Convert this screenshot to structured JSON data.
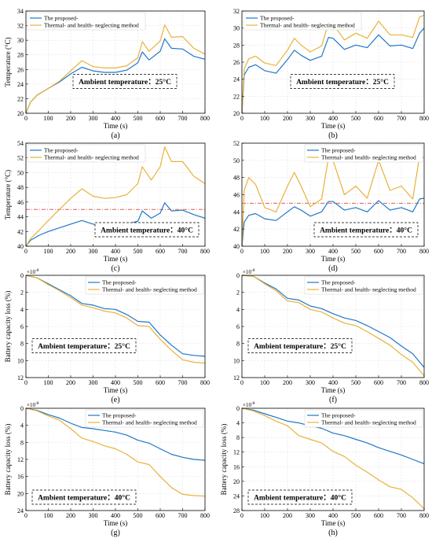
{
  "colors": {
    "proposed": "#1f77c8",
    "neglect": "#e8b23a",
    "limit": "#e05a5a"
  },
  "chart_data": [
    {
      "type": "line",
      "caption": "(a)",
      "xlabel": "Time (s)",
      "ylabel": "Temperature (°C)",
      "xlim": [
        0,
        800
      ],
      "ylim": [
        20,
        34
      ],
      "xticks": [
        "0",
        "100",
        "200",
        "300",
        "400",
        "500",
        "600",
        "700",
        "800"
      ],
      "yticks": [
        "20",
        "22",
        "24",
        "26",
        "28",
        "30",
        "32",
        "34"
      ],
      "ytick_values": [
        20,
        22,
        24,
        26,
        28,
        30,
        32,
        34
      ],
      "legend": "top-left",
      "grid": true,
      "annotation": "Ambient temperature：25°C",
      "annotation_pos": "center",
      "series": [
        {
          "name": "The proposed-",
          "x": [
            0,
            20,
            50,
            100,
            150,
            200,
            250,
            300,
            350,
            400,
            450,
            500,
            520,
            550,
            600,
            620,
            650,
            700,
            750,
            800
          ],
          "y": [
            20,
            21.5,
            22.5,
            23.4,
            24.3,
            25.4,
            26.3,
            25.8,
            25.6,
            25.6,
            25.9,
            26.9,
            28.4,
            27.3,
            28.5,
            30.2,
            28.9,
            28.8,
            27.8,
            27.4
          ]
        },
        {
          "name": "Thermal- and health- neglecting method",
          "x": [
            0,
            20,
            50,
            100,
            150,
            200,
            250,
            300,
            350,
            400,
            450,
            500,
            520,
            550,
            600,
            620,
            650,
            700,
            750,
            800
          ],
          "y": [
            20,
            21.5,
            22.5,
            23.4,
            24.4,
            25.8,
            27.2,
            26.4,
            26.2,
            26.2,
            26.5,
            27.6,
            29.8,
            28.5,
            29.9,
            32.1,
            30.4,
            30.5,
            28.9,
            28.1
          ]
        }
      ]
    },
    {
      "type": "line",
      "caption": "(b)",
      "xlabel": "Time (s)",
      "ylabel": "",
      "xlim": [
        0,
        800
      ],
      "ylim": [
        20,
        32
      ],
      "xticks": [
        "0",
        "100",
        "200",
        "300",
        "400",
        "500",
        "600",
        "700",
        "800"
      ],
      "yticks": [
        "20",
        "22",
        "24",
        "26",
        "28",
        "30",
        "32"
      ],
      "ytick_values": [
        20,
        22,
        24,
        26,
        28,
        30,
        32
      ],
      "legend": "top-left",
      "grid": true,
      "annotation": "Ambient temperature：25°C",
      "annotation_pos": "center",
      "series": [
        {
          "name": "The proposed-",
          "x": [
            0,
            10,
            30,
            60,
            100,
            150,
            200,
            230,
            260,
            300,
            350,
            380,
            400,
            450,
            500,
            550,
            600,
            650,
            700,
            750,
            780,
            800
          ],
          "y": [
            20,
            24.5,
            25.4,
            25.7,
            25.0,
            24.7,
            26.3,
            27.4,
            26.8,
            26.2,
            26.7,
            28.9,
            28.8,
            27.5,
            28.0,
            27.7,
            29.2,
            27.9,
            28.0,
            27.6,
            29.4,
            30.0
          ]
        },
        {
          "name": "Thermal- and health- neglecting method",
          "x": [
            0,
            10,
            30,
            60,
            100,
            150,
            200,
            230,
            260,
            300,
            350,
            380,
            400,
            450,
            500,
            550,
            600,
            650,
            700,
            750,
            780,
            800
          ],
          "y": [
            20,
            25.2,
            26.4,
            26.7,
            25.9,
            25.6,
            27.4,
            28.8,
            28.0,
            27.2,
            27.9,
            30.6,
            30.5,
            28.6,
            29.4,
            28.8,
            30.8,
            29.2,
            29.2,
            28.9,
            31.3,
            31.5
          ]
        }
      ]
    },
    {
      "type": "line",
      "caption": "(c)",
      "xlabel": "Time (s)",
      "ylabel": "Temperature (°C)",
      "xlim": [
        0,
        800
      ],
      "ylim": [
        40,
        54
      ],
      "xticks": [
        "0",
        "100",
        "200",
        "300",
        "400",
        "500",
        "600",
        "700",
        "800"
      ],
      "yticks": [
        "40",
        "42",
        "44",
        "46",
        "48",
        "50",
        "52",
        "54"
      ],
      "ytick_values": [
        40,
        42,
        44,
        46,
        48,
        50,
        52,
        54
      ],
      "legend": "top-left",
      "grid": true,
      "limit_line": 45,
      "annotation": "Ambient temperature：40°C",
      "annotation_pos": "bottom-right",
      "series": [
        {
          "name": "The proposed-",
          "x": [
            0,
            20,
            60,
            100,
            150,
            200,
            250,
            300,
            350,
            400,
            450,
            500,
            520,
            560,
            600,
            620,
            650,
            700,
            750,
            800
          ],
          "y": [
            40,
            40.8,
            41.5,
            42.0,
            42.5,
            43.0,
            43.5,
            43.0,
            42.8,
            42.8,
            43.0,
            43.4,
            44.8,
            43.8,
            44.5,
            45.9,
            44.8,
            44.9,
            44.3,
            43.8
          ]
        },
        {
          "name": "Thermal- and health- neglecting method",
          "x": [
            0,
            20,
            60,
            100,
            150,
            200,
            250,
            300,
            350,
            400,
            450,
            500,
            520,
            560,
            600,
            620,
            650,
            700,
            750,
            800
          ],
          "y": [
            40,
            41.0,
            42.2,
            43.5,
            45.0,
            46.5,
            47.8,
            46.8,
            46.5,
            46.6,
            47.0,
            48.5,
            50.8,
            49.0,
            50.8,
            53.5,
            51.5,
            51.5,
            49.5,
            48.5
          ]
        }
      ]
    },
    {
      "type": "line",
      "caption": "(d)",
      "xlabel": "Time (s)",
      "ylabel": "",
      "xlim": [
        0,
        800
      ],
      "ylim": [
        40,
        52
      ],
      "xticks": [
        "0",
        "100",
        "200",
        "300",
        "400",
        "500",
        "600",
        "700",
        "800"
      ],
      "yticks": [
        "40",
        "42",
        "44",
        "46",
        "48",
        "50",
        "52"
      ],
      "ytick_values": [
        40,
        42,
        44,
        46,
        48,
        50,
        52
      ],
      "legend": "top-right",
      "grid": true,
      "limit_line": 45,
      "annotation": "Ambient temperature：40°C",
      "annotation_pos": "bottom-right",
      "series": [
        {
          "name": "The proposed-",
          "x": [
            0,
            10,
            30,
            60,
            100,
            150,
            200,
            230,
            260,
            300,
            350,
            380,
            400,
            450,
            500,
            550,
            600,
            650,
            700,
            750,
            780,
            800
          ],
          "y": [
            40,
            42.8,
            43.6,
            43.8,
            43.2,
            43.0,
            44.0,
            44.6,
            44.2,
            43.5,
            44.0,
            45.2,
            45.2,
            44.2,
            44.5,
            44.0,
            45.3,
            44.2,
            44.5,
            44.0,
            45.5,
            45.6
          ]
        },
        {
          "name": "Thermal- and health- neglecting method",
          "x": [
            0,
            10,
            30,
            60,
            100,
            150,
            200,
            230,
            260,
            300,
            350,
            380,
            400,
            450,
            500,
            550,
            600,
            650,
            700,
            750,
            780,
            800
          ],
          "y": [
            40,
            46.5,
            48.0,
            47.2,
            44.5,
            44.0,
            47.0,
            48.6,
            47.0,
            44.6,
            45.5,
            50.3,
            50.0,
            46.0,
            47.0,
            45.6,
            50.0,
            46.5,
            47.0,
            45.5,
            50.5,
            50.3
          ]
        }
      ]
    },
    {
      "type": "line",
      "caption": "(e)",
      "xlabel": "Time (s)",
      "ylabel": "Battery capacity loss (%)",
      "xlim": [
        0,
        800
      ],
      "ylim": [
        0,
        12
      ],
      "y_inverted": true,
      "exponent": "×10",
      "exponent_power": "-8",
      "xticks": [
        "0",
        "100",
        "200",
        "300",
        "400",
        "500",
        "600",
        "700",
        "800"
      ],
      "yticks": [
        "0",
        "2",
        "4",
        "6",
        "8",
        "10",
        "12"
      ],
      "ytick_values": [
        0,
        2,
        4,
        6,
        8,
        10,
        12
      ],
      "legend": "top-right",
      "grid": true,
      "annotation": "Ambient temperature：25°C",
      "annotation_pos": "left",
      "series": [
        {
          "name": "The proposed-",
          "x": [
            0,
            50,
            100,
            150,
            200,
            250,
            300,
            350,
            400,
            450,
            500,
            550,
            600,
            650,
            700,
            750,
            800
          ],
          "y": [
            0,
            0.3,
            1.0,
            1.7,
            2.4,
            3.3,
            3.5,
            3.9,
            4.0,
            4.6,
            5.4,
            5.5,
            7.0,
            8.2,
            9.2,
            9.4,
            9.5
          ]
        },
        {
          "name": "Thermal- and health- neglecting method",
          "x": [
            0,
            50,
            100,
            150,
            200,
            250,
            300,
            350,
            400,
            450,
            500,
            550,
            600,
            650,
            700,
            750,
            800
          ],
          "y": [
            0,
            0.3,
            1.1,
            1.8,
            2.6,
            3.5,
            3.8,
            4.2,
            4.4,
            5.0,
            5.9,
            6.0,
            7.5,
            8.8,
            9.9,
            10.2,
            10.3
          ]
        }
      ]
    },
    {
      "type": "line",
      "caption": "(f)",
      "xlabel": "Time (s)",
      "ylabel": "",
      "xlim": [
        0,
        800
      ],
      "ylim": [
        0,
        12
      ],
      "y_inverted": true,
      "exponent": "×10",
      "exponent_power": "-8",
      "xticks": [
        "0",
        "100",
        "200",
        "300",
        "400",
        "500",
        "600",
        "700",
        "800"
      ],
      "yticks": [
        "0",
        "2",
        "4",
        "6",
        "8",
        "10",
        "12"
      ],
      "ytick_values": [
        0,
        2,
        4,
        6,
        8,
        10,
        12
      ],
      "legend": "top-right",
      "grid": true,
      "annotation": "Ambient temperature：25°C",
      "annotation_pos": "left",
      "series": [
        {
          "name": "The proposed-",
          "x": [
            0,
            50,
            100,
            150,
            200,
            250,
            300,
            350,
            400,
            450,
            500,
            550,
            600,
            650,
            700,
            750,
            800
          ],
          "y": [
            0,
            0.1,
            0.9,
            1.6,
            2.7,
            2.9,
            3.6,
            3.9,
            4.5,
            5.0,
            5.3,
            5.9,
            6.6,
            7.3,
            8.3,
            9.2,
            10.8
          ]
        },
        {
          "name": "Thermal- and health- neglecting method",
          "x": [
            0,
            50,
            100,
            150,
            200,
            250,
            300,
            350,
            400,
            450,
            500,
            550,
            600,
            650,
            700,
            750,
            800
          ],
          "y": [
            0,
            0.1,
            1.0,
            1.8,
            3.0,
            3.2,
            4.0,
            4.3,
            5.0,
            5.6,
            5.9,
            6.6,
            7.4,
            8.2,
            9.3,
            10.2,
            11.8
          ]
        }
      ]
    },
    {
      "type": "line",
      "caption": "(g)",
      "xlabel": "Time (s)",
      "ylabel": "Battery capacity loss (%)",
      "xlim": [
        0,
        800
      ],
      "ylim": [
        0,
        24
      ],
      "y_inverted": true,
      "exponent": "×10",
      "exponent_power": "-8",
      "xticks": [
        "0",
        "100",
        "200",
        "300",
        "400",
        "500",
        "600",
        "700",
        "800"
      ],
      "yticks": [
        "0",
        "4",
        "8",
        "12",
        "16",
        "20",
        "24"
      ],
      "ytick_values": [
        0,
        4,
        8,
        12,
        16,
        20,
        24
      ],
      "legend": "top-right",
      "grid": true,
      "annotation": "Ambient temperature：40°C",
      "annotation_pos": "bottom-left",
      "series": [
        {
          "name": "The proposed-",
          "x": [
            0,
            50,
            100,
            150,
            200,
            250,
            300,
            350,
            400,
            450,
            500,
            550,
            600,
            650,
            700,
            750,
            800
          ],
          "y": [
            0,
            0.5,
            1.5,
            2.3,
            3.5,
            4.5,
            4.8,
            5.2,
            5.6,
            6.3,
            7.5,
            8.2,
            9.5,
            10.8,
            11.5,
            12.0,
            12.2
          ]
        },
        {
          "name": "Thermal- and health- neglecting method",
          "x": [
            0,
            50,
            100,
            150,
            200,
            250,
            300,
            350,
            400,
            450,
            500,
            550,
            600,
            650,
            700,
            750,
            800
          ],
          "y": [
            0,
            0.6,
            1.8,
            2.8,
            4.8,
            7.0,
            7.8,
            8.8,
            9.5,
            10.8,
            12.6,
            13.2,
            16.0,
            18.6,
            20.2,
            20.5,
            20.6
          ]
        }
      ]
    },
    {
      "type": "line",
      "caption": "(h)",
      "xlabel": "Time (s)",
      "ylabel": "Battery capacity loss (%)",
      "xlim": [
        0,
        800
      ],
      "ylim": [
        0,
        28
      ],
      "y_inverted": true,
      "exponent": "×10",
      "exponent_power": "-8",
      "xticks": [
        "0",
        "100",
        "200",
        "300",
        "400",
        "500",
        "600",
        "700",
        "800"
      ],
      "yticks": [
        "0",
        "4",
        "8",
        "12",
        "16",
        "20",
        "24",
        "28"
      ],
      "ytick_values": [
        0,
        4,
        8,
        12,
        16,
        20,
        24,
        28
      ],
      "legend": "top-right",
      "grid": true,
      "annotation": "Ambient temperature：40°C",
      "annotation_pos": "bottom-left",
      "series": [
        {
          "name": "The proposed-",
          "x": [
            0,
            50,
            100,
            150,
            200,
            250,
            300,
            350,
            400,
            450,
            500,
            550,
            600,
            650,
            700,
            750,
            800
          ],
          "y": [
            0,
            0.5,
            1.5,
            2.5,
            3.5,
            4.0,
            4.8,
            5.5,
            6.8,
            7.5,
            8.5,
            9.5,
            10.8,
            11.8,
            12.8,
            14.0,
            15.2
          ]
        },
        {
          "name": "Thermal- and health- neglecting method",
          "x": [
            0,
            50,
            100,
            150,
            200,
            250,
            300,
            350,
            400,
            450,
            500,
            550,
            600,
            650,
            700,
            750,
            800
          ],
          "y": [
            0,
            0.7,
            2.0,
            3.5,
            4.8,
            7.5,
            8.5,
            9.5,
            11.8,
            13.2,
            15.6,
            17.5,
            19.6,
            21.5,
            22.2,
            24.5,
            27.5
          ]
        }
      ]
    }
  ]
}
